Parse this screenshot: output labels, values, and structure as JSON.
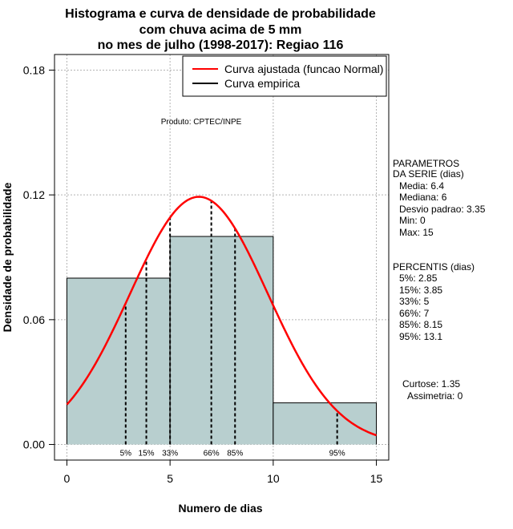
{
  "chart_data": {
    "type": "histogram",
    "title_lines": [
      "Histograma e curva de densidade de probabilidade",
      "com chuva acima de 5 mm",
      "no mes de julho (1998-2017): Regiao 116"
    ],
    "xlabel": "Numero de dias",
    "ylabel": "Densidade de probabilidade",
    "xlim": [
      -0.6,
      15.6
    ],
    "ylim": [
      -0.0075,
      0.1875
    ],
    "x_ticks": [
      0,
      5,
      10,
      15
    ],
    "y_ticks": [
      0.0,
      0.06,
      0.12,
      0.18
    ],
    "x_tick_labels": [
      "0",
      "5",
      "10",
      "15"
    ],
    "y_tick_labels": [
      "0.00",
      "0.06",
      "0.12",
      "0.18"
    ],
    "grid": true,
    "bins": [
      {
        "x0": 0,
        "x1": 5,
        "density": 0.08
      },
      {
        "x0": 5,
        "x1": 10,
        "density": 0.1
      },
      {
        "x0": 10,
        "x1": 15,
        "density": 0.02
      }
    ],
    "normal_fit": {
      "mean": 6.4,
      "sd": 3.35,
      "x_range": [
        0,
        15
      ]
    },
    "percentile_lines": [
      {
        "label": "5%",
        "value": 2.85
      },
      {
        "label": "15%",
        "value": 3.85
      },
      {
        "label": "33%",
        "value": 5
      },
      {
        "label": "66%",
        "value": 7
      },
      {
        "label": "85%",
        "value": 8.15
      },
      {
        "label": "95%",
        "value": 13.1
      }
    ],
    "legend": {
      "position": "top-right",
      "entries": [
        {
          "label": "Curva ajustada (funcao Normal)",
          "color": "#ff0000"
        },
        {
          "label": "Curva empirica",
          "color": "#000000"
        }
      ]
    },
    "annotation": "Produto: CPTEC/INPE",
    "colors": {
      "bar_fill": "#b8cfcf",
      "curve": "#ff0000",
      "grid": "#b3b3b3"
    }
  },
  "side_panel": {
    "params_title": [
      "PARAMETROS",
      "DA SERIE (dias)"
    ],
    "params": [
      "Media: 6.4",
      "Mediana: 6",
      "Desvio padrao: 3.35",
      "Min: 0",
      "Max: 15"
    ],
    "percentis_title": "PERCENTIS (dias)",
    "percentis": [
      "5%: 2.85",
      "15%: 3.85",
      "33%: 5",
      "66%: 7",
      "85%: 8.15",
      "95%: 13.1"
    ],
    "curtose": "Curtose: 1.35",
    "assimetria": "Assimetria: 0"
  }
}
